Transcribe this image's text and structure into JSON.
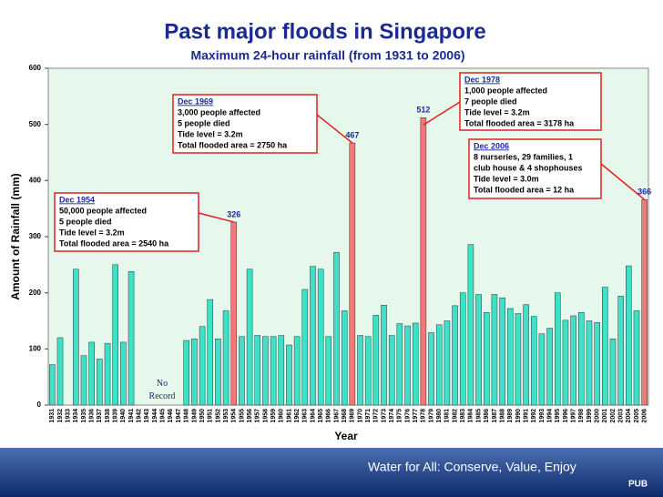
{
  "chart_data": {
    "type": "bar",
    "title": "Past major floods in Singapore",
    "subtitle": "Maximum  24-hour  rainfall  (from 1931 to 2006)",
    "x_label": "Year",
    "y_label": "Amount of Rainfall (mm)",
    "categories": [
      "1931",
      "1932",
      "1933",
      "1934",
      "1935",
      "1936",
      "1937",
      "1938",
      "1939",
      "1940",
      "1941",
      "1942",
      "1943",
      "1944",
      "1945",
      "1946",
      "1947",
      "1948",
      "1949",
      "1950",
      "1951",
      "1952",
      "1953",
      "1954",
      "1955",
      "1956",
      "1957",
      "1958",
      "1959",
      "1960",
      "1961",
      "1962",
      "1963",
      "1964",
      "1965",
      "1966",
      "1967",
      "1968",
      "1969",
      "1970",
      "1971",
      "1972",
      "1973",
      "1974",
      "1975",
      "1976",
      "1977",
      "1978",
      "1979",
      "1980",
      "1981",
      "1982",
      "1983",
      "1984",
      "1985",
      "1986",
      "1987",
      "1988",
      "1989",
      "1990",
      "1991",
      "1992",
      "1993",
      "1994",
      "1995",
      "1996",
      "1997",
      "1998",
      "1999",
      "2000",
      "2001",
      "2002",
      "2003",
      "2004",
      "2005",
      "2006"
    ],
    "values": [
      72,
      120,
      null,
      242,
      88,
      112,
      82,
      110,
      250,
      112,
      238,
      null,
      null,
      null,
      null,
      null,
      null,
      115,
      118,
      140,
      188,
      118,
      168,
      326,
      122,
      242,
      124,
      122,
      122,
      124,
      107,
      122,
      206,
      247,
      242,
      122,
      272,
      168,
      467,
      124,
      122,
      160,
      178,
      124,
      145,
      141,
      146,
      512,
      129,
      143,
      150,
      177,
      200,
      286,
      197,
      165,
      197,
      191,
      172,
      163,
      179,
      158,
      127,
      137,
      200,
      151,
      159,
      165,
      150,
      147,
      210,
      118,
      194,
      248,
      168,
      366
    ],
    "value_labels": [
      null,
      null,
      null,
      null,
      null,
      null,
      null,
      null,
      null,
      null,
      null,
      null,
      null,
      null,
      null,
      null,
      null,
      null,
      null,
      null,
      null,
      null,
      null,
      "326",
      null,
      null,
      null,
      null,
      null,
      null,
      null,
      null,
      null,
      null,
      null,
      null,
      null,
      null,
      "467",
      null,
      null,
      null,
      null,
      null,
      null,
      null,
      null,
      "512",
      null,
      null,
      null,
      null,
      null,
      null,
      null,
      null,
      null,
      null,
      null,
      null,
      null,
      null,
      null,
      null,
      null,
      null,
      null,
      null,
      null,
      null,
      null,
      null,
      null,
      null,
      null,
      "366"
    ],
    "color": "#3fe0c8",
    "highlight_color": "#f07878",
    "ylim": [
      0,
      600
    ],
    "yticks": [
      0,
      100,
      200,
      300,
      400,
      500,
      600
    ],
    "no_record_label": "No Record",
    "annotations": [
      {
        "lines": [
          "Dec 1954",
          "50,000 people affected",
          "5 people died",
          "Tide level = 3.2m",
          "Total flooded area = 2540 ha"
        ]
      },
      {
        "lines": [
          "Dec 1969",
          "3,000 people affected",
          "5 people died",
          "Tide level = 3.2m",
          "Total flooded area = 2750 ha"
        ]
      },
      {
        "lines": [
          "Dec 1978",
          "1,000 people affected",
          "7 people died",
          "Tide level = 3.2m",
          "Total flooded area = 3178 ha"
        ]
      },
      {
        "lines": [
          "Dec 2006",
          "8 nurseries, 29 families, 1",
          "club house & 4 shophouses",
          "Tide level = 3.0m",
          "Total flooded area = 12 ha"
        ]
      }
    ]
  },
  "footer": {
    "slogan": "Water for All: Conserve, Value, Enjoy",
    "logo": "PUB"
  }
}
